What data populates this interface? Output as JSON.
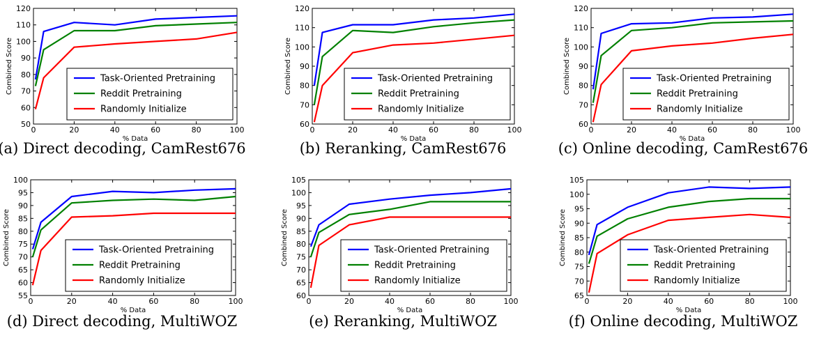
{
  "colors": {
    "task_oriented": "#0000ff",
    "reddit": "#008000",
    "random": "#ff0000"
  },
  "chart_data": [
    {
      "type": "line",
      "caption": "(a) Direct decoding, CamRest676",
      "xlabel": "% Data",
      "ylabel": "Combined Score",
      "xlim": [
        0,
        100
      ],
      "ylim": [
        50,
        120
      ],
      "xticks": [
        0,
        20,
        40,
        60,
        80,
        100
      ],
      "yticks": [
        50,
        60,
        70,
        80,
        90,
        100,
        110,
        120
      ],
      "legend": "lower-right",
      "series": [
        {
          "name": "Task-Oriented Pretraining",
          "x": [
            1,
            5,
            20,
            40,
            60,
            80,
            100
          ],
          "y": [
            77,
            106,
            111.5,
            110,
            113.5,
            114.5,
            115.5
          ]
        },
        {
          "name": "Reddit Pretraining",
          "x": [
            1,
            5,
            20,
            40,
            60,
            80,
            100
          ],
          "y": [
            73,
            95,
            106.5,
            106.5,
            109.5,
            110.5,
            111.5
          ]
        },
        {
          "name": "Randomly Initialize",
          "x": [
            1,
            5,
            20,
            40,
            60,
            80,
            100
          ],
          "y": [
            59,
            78,
            96.5,
            98.5,
            100,
            101.5,
            105.5
          ]
        }
      ]
    },
    {
      "type": "line",
      "caption": "(b) Reranking, CamRest676",
      "xlabel": "% Data",
      "ylabel": "Combined Score",
      "xlim": [
        0,
        100
      ],
      "ylim": [
        60,
        120
      ],
      "xticks": [
        0,
        20,
        40,
        60,
        80,
        100
      ],
      "yticks": [
        60,
        70,
        80,
        90,
        100,
        110,
        120
      ],
      "legend": "lower-right",
      "series": [
        {
          "name": "Task-Oriented Pretraining",
          "x": [
            1,
            5,
            20,
            40,
            60,
            80,
            100
          ],
          "y": [
            80,
            107.5,
            111.5,
            111.5,
            114,
            115,
            117
          ]
        },
        {
          "name": "Reddit Pretraining",
          "x": [
            1,
            5,
            20,
            40,
            60,
            80,
            100
          ],
          "y": [
            70,
            95,
            108.5,
            107.5,
            110.5,
            112.5,
            114
          ]
        },
        {
          "name": "Randomly Initialize",
          "x": [
            1,
            5,
            20,
            40,
            60,
            80,
            100
          ],
          "y": [
            61,
            80,
            97,
            101,
            102,
            104,
            106
          ]
        }
      ]
    },
    {
      "type": "line",
      "caption": "(c) Online decoding, CamRest676",
      "xlabel": "% Data",
      "ylabel": "Combined Score",
      "xlim": [
        0,
        100
      ],
      "ylim": [
        60,
        120
      ],
      "xticks": [
        0,
        20,
        40,
        60,
        80,
        100
      ],
      "yticks": [
        60,
        70,
        80,
        90,
        100,
        110,
        120
      ],
      "legend": "lower-right",
      "series": [
        {
          "name": "Task-Oriented Pretraining",
          "x": [
            1,
            5,
            20,
            40,
            60,
            80,
            100
          ],
          "y": [
            78,
            107,
            112,
            112.5,
            115,
            115.5,
            117
          ]
        },
        {
          "name": "Reddit Pretraining",
          "x": [
            1,
            5,
            20,
            40,
            60,
            80,
            100
          ],
          "y": [
            71,
            95.5,
            108.5,
            110,
            112.5,
            113,
            113.5
          ]
        },
        {
          "name": "Randomly Initialize",
          "x": [
            1,
            5,
            20,
            40,
            60,
            80,
            100
          ],
          "y": [
            61,
            80.5,
            98,
            100.5,
            102,
            104.5,
            106.5
          ]
        }
      ]
    },
    {
      "type": "line",
      "caption": "(d) Direct decoding, MultiWOZ",
      "xlabel": "% Data",
      "ylabel": "Combined Score",
      "xlim": [
        0,
        100
      ],
      "ylim": [
        55,
        100
      ],
      "xticks": [
        0,
        20,
        40,
        60,
        80,
        100
      ],
      "yticks": [
        55,
        60,
        65,
        70,
        75,
        80,
        85,
        90,
        95,
        100
      ],
      "legend": "lower-right",
      "series": [
        {
          "name": "Task-Oriented Pretraining",
          "x": [
            1,
            5,
            20,
            40,
            60,
            80,
            100
          ],
          "y": [
            73,
            83.5,
            93.5,
            95.5,
            95,
            96,
            96.5
          ]
        },
        {
          "name": "Reddit Pretraining",
          "x": [
            1,
            5,
            20,
            40,
            60,
            80,
            100
          ],
          "y": [
            70,
            80.5,
            91,
            92,
            92.5,
            92,
            93.5
          ]
        },
        {
          "name": "Randomly Initialize",
          "x": [
            1,
            5,
            20,
            40,
            60,
            80,
            100
          ],
          "y": [
            59,
            72.5,
            85.5,
            86,
            87,
            87,
            87
          ]
        }
      ]
    },
    {
      "type": "line",
      "caption": "(e) Reranking, MultiWOZ",
      "xlabel": "% Data",
      "ylabel": "Combined Score",
      "xlim": [
        0,
        100
      ],
      "ylim": [
        60,
        105
      ],
      "xticks": [
        0,
        20,
        40,
        60,
        80,
        100
      ],
      "yticks": [
        60,
        65,
        70,
        75,
        80,
        85,
        90,
        95,
        100,
        105
      ],
      "legend": "lower-right",
      "series": [
        {
          "name": "Task-Oriented Pretraining",
          "x": [
            1,
            5,
            20,
            40,
            60,
            80,
            100
          ],
          "y": [
            79,
            87.5,
            95.5,
            97.5,
            99,
            100,
            101.5
          ]
        },
        {
          "name": "Reddit Pretraining",
          "x": [
            1,
            5,
            20,
            40,
            60,
            80,
            100
          ],
          "y": [
            75,
            84.5,
            91.5,
            93.5,
            96.5,
            96.5,
            96.5
          ]
        },
        {
          "name": "Randomly Initialize",
          "x": [
            1,
            5,
            20,
            40,
            60,
            80,
            100
          ],
          "y": [
            63,
            79.5,
            87.5,
            90.5,
            90.5,
            90.5,
            90.5
          ]
        }
      ]
    },
    {
      "type": "line",
      "caption": "(f) Online decoding, MultiWOZ",
      "xlabel": "% Data",
      "ylabel": "Combined Score",
      "xlim": [
        0,
        100
      ],
      "ylim": [
        65,
        105
      ],
      "xticks": [
        0,
        20,
        40,
        60,
        80,
        100
      ],
      "yticks": [
        65,
        70,
        75,
        80,
        85,
        90,
        95,
        100,
        105
      ],
      "legend": "lower-right",
      "series": [
        {
          "name": "Task-Oriented Pretraining",
          "x": [
            1,
            5,
            20,
            40,
            60,
            80,
            100
          ],
          "y": [
            79,
            89.5,
            95.5,
            100.5,
            102.5,
            102,
            102.5
          ]
        },
        {
          "name": "Reddit Pretraining",
          "x": [
            1,
            5,
            20,
            40,
            60,
            80,
            100
          ],
          "y": [
            76,
            85.5,
            91.5,
            95.5,
            97.5,
            98.5,
            98.5
          ]
        },
        {
          "name": "Randomly Initialize",
          "x": [
            1,
            5,
            20,
            40,
            60,
            80,
            100
          ],
          "y": [
            66,
            79.5,
            86,
            91,
            92,
            93,
            92
          ]
        }
      ]
    }
  ]
}
